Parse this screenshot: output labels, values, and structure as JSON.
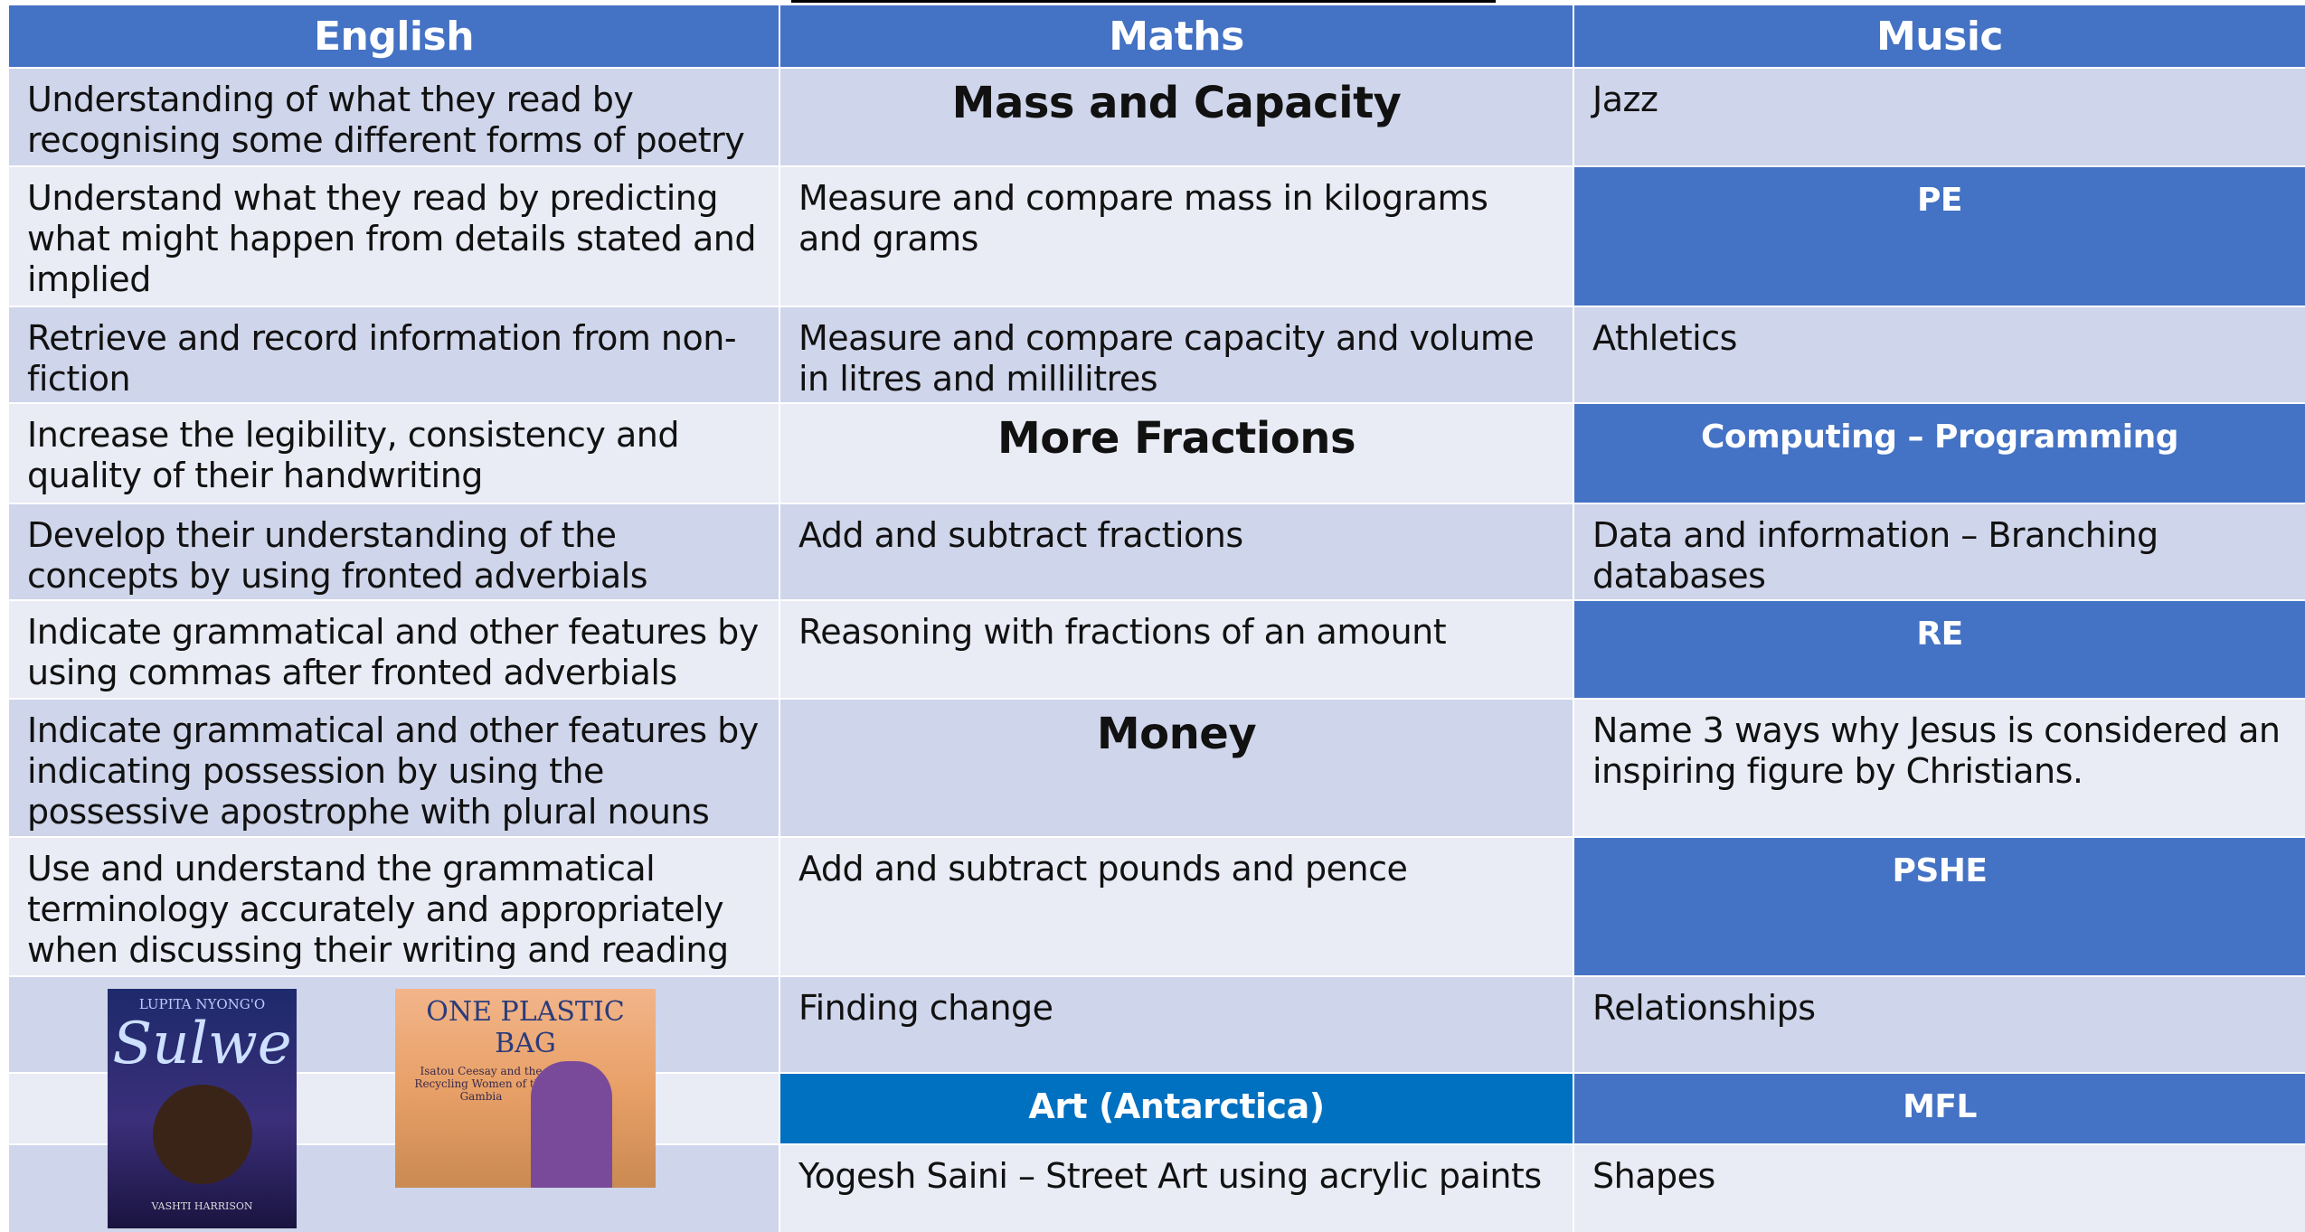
{
  "table": {
    "header": [
      "English",
      "Maths",
      "Music"
    ],
    "rows": [
      [
        "Understanding of what they read by recognising some different forms of poetry",
        "Mass and Capacity",
        "Jazz"
      ],
      [
        "Understand what they read by predicting what might happen from details stated and implied",
        "Measure and compare mass in kilograms and grams",
        "PE"
      ],
      [
        "Retrieve and record information from non-fiction",
        "Measure and compare capacity and volume in litres and millilitres",
        "Athletics"
      ],
      [
        "Increase the legibility, consistency and quality of their handwriting",
        "More Fractions",
        "Computing – Programming"
      ],
      [
        "Develop their understanding of the concepts by using fronted adverbials",
        "Add and subtract fractions",
        "Data and information – Branching databases"
      ],
      [
        "Indicate grammatical and other features by using commas after fronted adverbials",
        "Reasoning with fractions of an amount",
        "RE"
      ],
      [
        "Indicate grammatical and other features by indicating possession by using the possessive apostrophe with plural nouns",
        "Money",
        "Name 3 ways why Jesus is considered an inspiring figure by Christians."
      ],
      [
        "Use and understand the grammatical terminology accurately and appropriately when discussing their writing and reading",
        "Add and subtract pounds and pence",
        "PSHE"
      ]
    ],
    "lower_rows": [
      [
        "Finding change",
        "Relationships"
      ],
      [
        "Art (Antarctica)",
        "MFL"
      ],
      [
        "Yogesh Saini – Street Art using acrylic paints",
        "Shapes"
      ]
    ],
    "books": [
      {
        "author": "LUPITA NYONG'O",
        "title": "Sulwe",
        "illustrator": "VASHTI HARRISON"
      },
      {
        "title": "ONE PLASTIC BAG",
        "subtitle": "Isatou Ceesay and the Recycling Women of the Gambia"
      }
    ]
  }
}
